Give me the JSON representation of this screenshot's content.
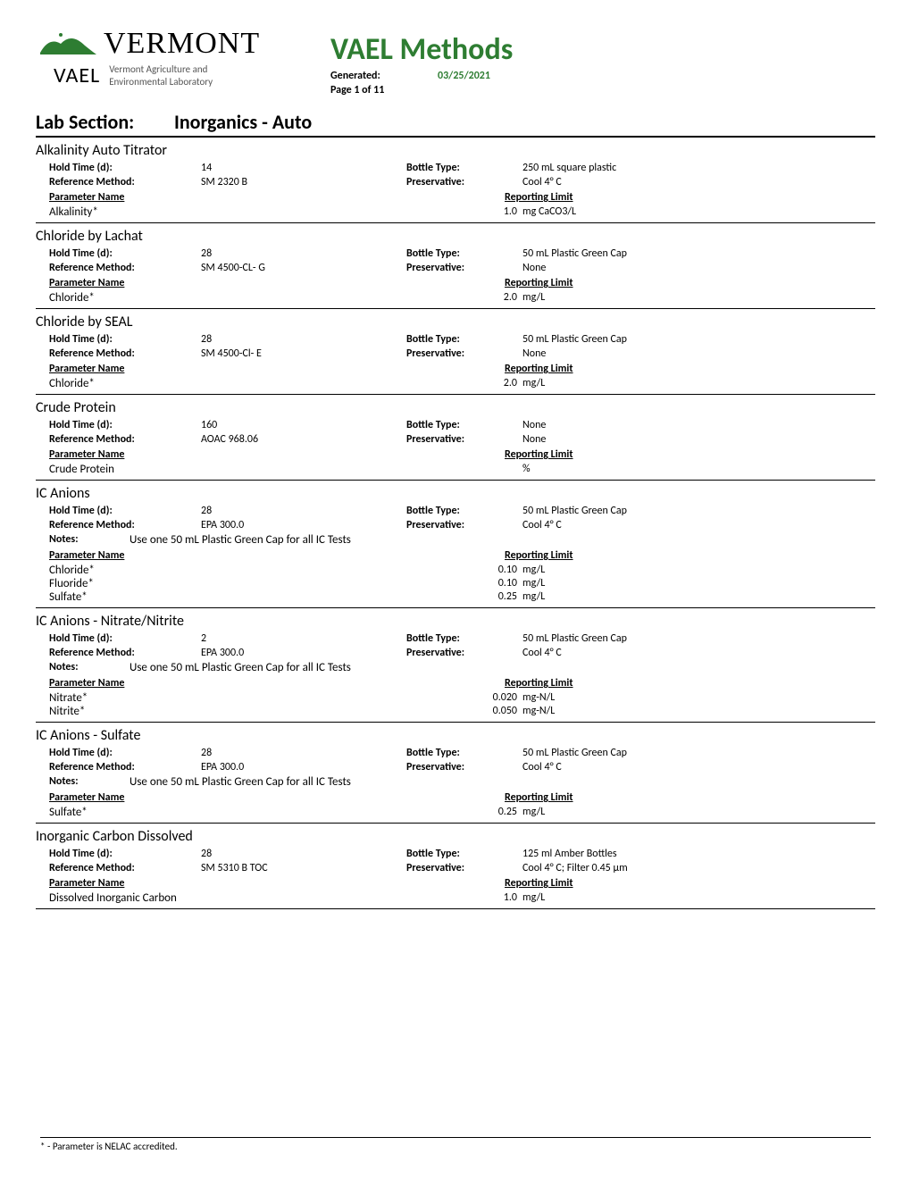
{
  "header": {
    "logo_top": "VERMONT",
    "logo_bottom": "VAEL",
    "logo_sub1": "Vermont Agriculture and",
    "logo_sub2": "Environmental Laboratory",
    "title": "VAEL Methods",
    "generated_label": "Generated:",
    "generated_value": "03/25/2021",
    "page_label": "Page 1 of 11",
    "title_color": "#2e7d32",
    "meta_color": "#2e7d32"
  },
  "section": {
    "label": "Lab Section:",
    "value": "Inorganics - Auto"
  },
  "labels": {
    "hold_time": "Hold Time (d):",
    "reference_method": "Reference Method:",
    "bottle_type": "Bottle Type:",
    "preservative": "Preservative:",
    "notes": "Notes:",
    "parameter_name": "Parameter Name",
    "reporting_limit": "Reporting Limit"
  },
  "methods": [
    {
      "title": "Alkalinity Auto Titrator",
      "hold_time": "14",
      "reference_method": "SM 2320 B",
      "bottle_type": "250 mL square plastic",
      "preservative": "Cool 4° C",
      "notes": null,
      "parameters": [
        {
          "name": "Alkalinity*",
          "value": "1.0",
          "unit": "mg CaCO3/L"
        }
      ]
    },
    {
      "title": "Chloride by Lachat",
      "hold_time": "28",
      "reference_method": "SM 4500-CL- G",
      "bottle_type": "50 mL Plastic Green Cap",
      "preservative": "None",
      "notes": null,
      "parameters": [
        {
          "name": "Chloride*",
          "value": "2.0",
          "unit": "mg/L"
        }
      ]
    },
    {
      "title": "Chloride by SEAL",
      "hold_time": "28",
      "reference_method": "SM 4500-Cl- E",
      "bottle_type": "50 mL Plastic Green Cap",
      "preservative": "None",
      "notes": null,
      "parameters": [
        {
          "name": "Chloride*",
          "value": "2.0",
          "unit": "mg/L"
        }
      ]
    },
    {
      "title": "Crude Protein",
      "hold_time": "160",
      "reference_method": "AOAC 968.06",
      "bottle_type": "None",
      "preservative": "None",
      "notes": null,
      "parameters": [
        {
          "name": "Crude Protein",
          "value": "",
          "unit": "%"
        }
      ]
    },
    {
      "title": "IC Anions",
      "hold_time": "28",
      "reference_method": "EPA 300.0",
      "bottle_type": "50 mL Plastic Green Cap",
      "preservative": "Cool 4° C",
      "notes": "Use one 50 mL Plastic Green Cap for all IC Tests",
      "parameters": [
        {
          "name": "Chloride*",
          "value": "0.10",
          "unit": "mg/L"
        },
        {
          "name": "Fluoride*",
          "value": "0.10",
          "unit": "mg/L"
        },
        {
          "name": "Sulfate*",
          "value": "0.25",
          "unit": "mg/L"
        }
      ]
    },
    {
      "title": "IC Anions - Nitrate/Nitrite",
      "hold_time": "2",
      "reference_method": "EPA 300.0",
      "bottle_type": "50 mL Plastic Green Cap",
      "preservative": "Cool 4° C",
      "notes": "Use one 50 mL Plastic Green Cap for all IC Tests",
      "parameters": [
        {
          "name": "Nitrate*",
          "value": "0.020",
          "unit": "mg-N/L"
        },
        {
          "name": "Nitrite*",
          "value": "0.050",
          "unit": "mg-N/L"
        }
      ]
    },
    {
      "title": "IC Anions - Sulfate",
      "hold_time": "28",
      "reference_method": "EPA 300.0",
      "bottle_type": "50 mL Plastic Green Cap",
      "preservative": "Cool 4° C",
      "notes": "Use one 50 mL Plastic Green Cap for all IC Tests",
      "parameters": [
        {
          "name": "Sulfate*",
          "value": "0.25",
          "unit": "mg/L"
        }
      ]
    },
    {
      "title": "Inorganic Carbon Dissolved",
      "hold_time": "28",
      "reference_method": "SM 5310 B TOC",
      "bottle_type": "125 ml Amber Bottles",
      "preservative": "Cool 4° C; Filter 0.45 μm",
      "notes": null,
      "parameters": [
        {
          "name": "Dissolved Inorganic Carbon",
          "value": "1.0",
          "unit": "mg/L"
        }
      ]
    }
  ],
  "footer": "* - Parameter is NELAC accredited."
}
